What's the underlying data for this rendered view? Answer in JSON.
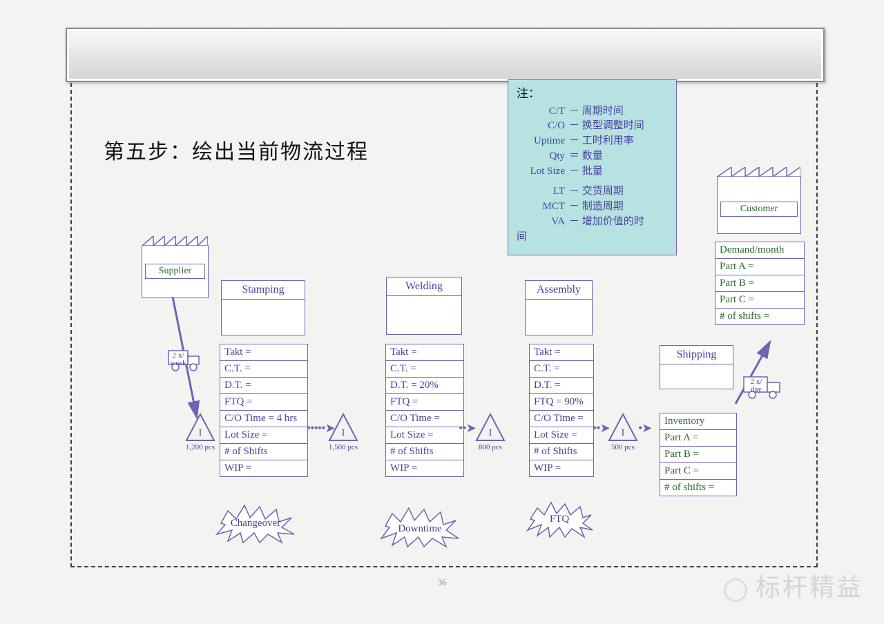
{
  "title": "第五步：绘出当前物流过程",
  "page_number": "36",
  "watermark": "标杆精益",
  "colors": {
    "line": "#6e63b5",
    "text_purple": "#4a3fa0",
    "text_green": "#2b6b2b",
    "legend_bg": "#b7e2e2",
    "dash_border": "#404040"
  },
  "legend": {
    "header": "注：",
    "items": [
      {
        "k": "C/T",
        "sep": "－",
        "v": "周期时间"
      },
      {
        "k": "C/O",
        "sep": "－",
        "v": "换型调整时间"
      },
      {
        "k": "Uptime",
        "sep": "－",
        "v": "工时利用率"
      },
      {
        "k": "Qty",
        "sep": "＝",
        "v": "数量"
      },
      {
        "k": "Lot Size",
        "sep": "－",
        "v": "批量"
      },
      {
        "k": "LT",
        "sep": "－",
        "v": "交货周期"
      },
      {
        "k": "MCT",
        "sep": "－",
        "v": "制造周期"
      },
      {
        "k": "VA",
        "sep": "－",
        "v": "增加价值的时"
      }
    ],
    "tail": "间"
  },
  "supplier": {
    "label": "Supplier"
  },
  "customer": {
    "label": "Customer"
  },
  "processes": {
    "stamping": {
      "label": "Stamping",
      "burst": "Changeover",
      "data": [
        "Takt =",
        "C.T. =",
        "D.T. =",
        "FTQ =",
        "C/O Time = 4 hrs",
        "Lot Size =",
        "# of Shifts",
        "WIP ="
      ]
    },
    "welding": {
      "label": "Welding",
      "burst": "Downtime",
      "data": [
        "Takt =",
        "C.T. =",
        "D.T. = 20%",
        "FTQ =",
        "C/O Time =",
        "Lot Size =",
        "# of Shifts",
        "WIP ="
      ]
    },
    "assembly": {
      "label": "Assembly",
      "burst": "FTQ",
      "data": [
        "Takt =",
        "C.T. =",
        "D.T. =",
        "FTQ = 90%",
        "C/O Time =",
        "Lot Size =",
        "# of Shifts",
        "WIP ="
      ]
    }
  },
  "inventory_triangles": [
    {
      "qty": "1,200 pcs"
    },
    {
      "qty": "1,500 pcs"
    },
    {
      "qty": "800 pcs"
    },
    {
      "qty": "500 pcs"
    }
  ],
  "shipping": {
    "label": "Shipping",
    "inventory_rows": [
      "Inventory",
      "Part A =",
      "Part B =",
      "Part C =",
      "# of shifts ="
    ]
  },
  "demand_box": {
    "rows": [
      "Demand/month",
      "Part A =",
      "Part B =",
      "Part C =",
      "# of shifts ="
    ]
  },
  "trucks": {
    "supplier": "2 x/\nweek",
    "customer": "2 x/\nday"
  }
}
